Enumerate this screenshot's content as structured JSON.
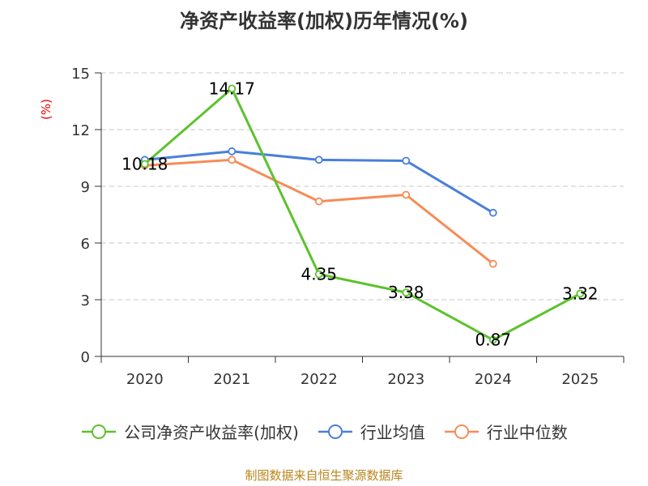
{
  "chart_data": {
    "type": "line",
    "title": "净资产收益率(加权)历年情况(%)",
    "ylabel": "(%)",
    "xlabel": "",
    "categories": [
      "2020",
      "2021",
      "2022",
      "2023",
      "2024",
      "2025"
    ],
    "ylim": [
      0,
      15
    ],
    "yticks": [
      0,
      3,
      6,
      9,
      12,
      15
    ],
    "grid": true,
    "legend_position": "bottom",
    "series": [
      {
        "name": "公司净资产收益率(加权)",
        "color": "#5cc22d",
        "values": [
          10.18,
          14.17,
          4.35,
          3.38,
          0.87,
          3.32
        ],
        "labels": [
          "10.18",
          "14.17",
          "4.35",
          "3.38",
          "0.87",
          "3.32"
        ]
      },
      {
        "name": "行业均值",
        "color": "#4a7fdb",
        "values": [
          10.4,
          10.85,
          10.4,
          10.35,
          7.6,
          null
        ]
      },
      {
        "name": "行业中位数",
        "color": "#f58d58",
        "values": [
          10.1,
          10.4,
          8.2,
          8.55,
          4.9,
          null
        ]
      }
    ]
  },
  "source": "制图数据来自恒生聚源数据库"
}
